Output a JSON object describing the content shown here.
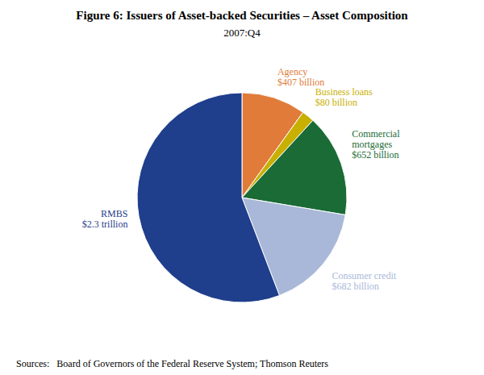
{
  "chart_data": {
    "type": "pie",
    "title": "Figure 6: Issuers of Asset-backed Securities – Asset Composition",
    "subtitle": "2007:Q4",
    "categories": [
      "Agency",
      "Business loans",
      "Commercial\nmortgages",
      "Consumer credit",
      "RMBS"
    ],
    "values": [
      407,
      80,
      652,
      682,
      2300
    ],
    "value_labels": [
      "$407 billion",
      "$80 billion",
      "$652 billion",
      "$682 billion",
      "$2.3 trillion"
    ],
    "colors": [
      "#E07B39",
      "#C8B000",
      "#1A6B35",
      "#A9B8D8",
      "#1F3E8C"
    ],
    "data_labels": true,
    "source": "Sources:   Board of Governors of the Federal Reserve System; Thomson Reuters"
  }
}
